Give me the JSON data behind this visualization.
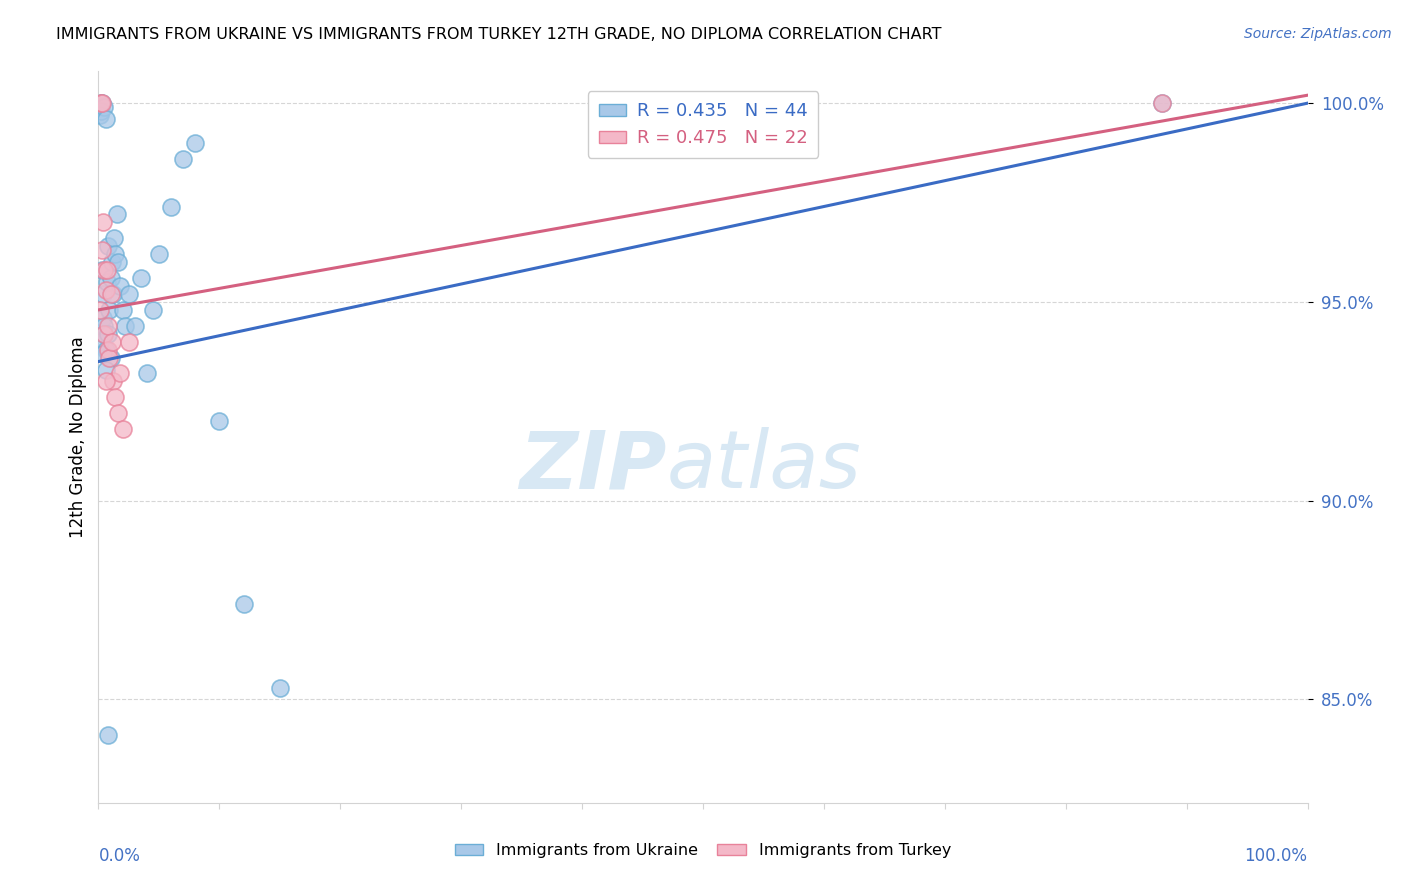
{
  "title": "IMMIGRANTS FROM UKRAINE VS IMMIGRANTS FROM TURKEY 12TH GRADE, NO DIPLOMA CORRELATION CHART",
  "source": "Source: ZipAtlas.com",
  "ylabel": "12th Grade, No Diploma",
  "legend_ukraine": "Immigrants from Ukraine",
  "legend_turkey": "Immigrants from Turkey",
  "ukraine_R": 0.435,
  "ukraine_N": 44,
  "turkey_R": 0.475,
  "turkey_N": 22,
  "ukraine_scatter_color": "#a8c8e8",
  "ukraine_scatter_edge": "#6baed6",
  "turkey_scatter_color": "#f4b8c8",
  "turkey_scatter_edge": "#e8829a",
  "ukraine_line_color": "#3a6bc4",
  "turkey_line_color": "#d46080",
  "background_color": "#ffffff",
  "grid_color": "#cccccc",
  "ytick_color": "#4472c4",
  "source_color": "#4472c4",
  "watermark_color": "#d8e8f4",
  "xlim": [
    0.0,
    1.0
  ],
  "ylim": [
    0.824,
    1.008
  ],
  "yticks": [
    0.85,
    0.9,
    0.95,
    1.0
  ],
  "ytick_labels": [
    "85.0%",
    "90.0%",
    "95.0%",
    "100.0%"
  ],
  "ukraine_line_x0": 0.0,
  "ukraine_line_y0": 0.935,
  "ukraine_line_x1": 1.0,
  "ukraine_line_y1": 1.0,
  "turkey_line_x0": 0.0,
  "turkey_line_y0": 0.948,
  "turkey_line_x1": 1.0,
  "turkey_line_y1": 1.002,
  "ukraine_x": [
    0.001,
    0.001,
    0.002,
    0.002,
    0.003,
    0.003,
    0.004,
    0.004,
    0.005,
    0.005,
    0.005,
    0.006,
    0.006,
    0.007,
    0.008,
    0.008,
    0.009,
    0.01,
    0.01,
    0.011,
    0.012,
    0.013,
    0.014,
    0.015,
    0.016,
    0.018,
    0.02,
    0.022,
    0.025,
    0.03,
    0.035,
    0.04,
    0.045,
    0.05,
    0.06,
    0.07,
    0.08,
    0.1,
    0.12,
    0.15,
    0.004,
    0.006,
    0.88,
    0.008
  ],
  "ukraine_y": [
    0.94,
    0.997,
    0.998,
    1.0,
    1.0,
    0.958,
    0.952,
    0.946,
    0.944,
    0.942,
    0.999,
    0.938,
    0.996,
    0.955,
    0.964,
    0.942,
    0.948,
    0.936,
    0.956,
    0.96,
    0.952,
    0.966,
    0.962,
    0.972,
    0.96,
    0.954,
    0.948,
    0.944,
    0.952,
    0.944,
    0.956,
    0.932,
    0.948,
    0.962,
    0.974,
    0.986,
    0.99,
    0.92,
    0.874,
    0.853,
    0.937,
    0.933,
    1.0,
    0.841
  ],
  "turkey_x": [
    0.001,
    0.002,
    0.003,
    0.003,
    0.004,
    0.005,
    0.005,
    0.006,
    0.007,
    0.008,
    0.008,
    0.009,
    0.01,
    0.011,
    0.012,
    0.014,
    0.016,
    0.018,
    0.02,
    0.025,
    0.88,
    0.006
  ],
  "turkey_y": [
    0.948,
    1.0,
    1.0,
    0.963,
    0.97,
    0.958,
    0.942,
    0.953,
    0.958,
    0.944,
    0.938,
    0.936,
    0.952,
    0.94,
    0.93,
    0.926,
    0.922,
    0.932,
    0.918,
    0.94,
    1.0,
    0.93
  ]
}
